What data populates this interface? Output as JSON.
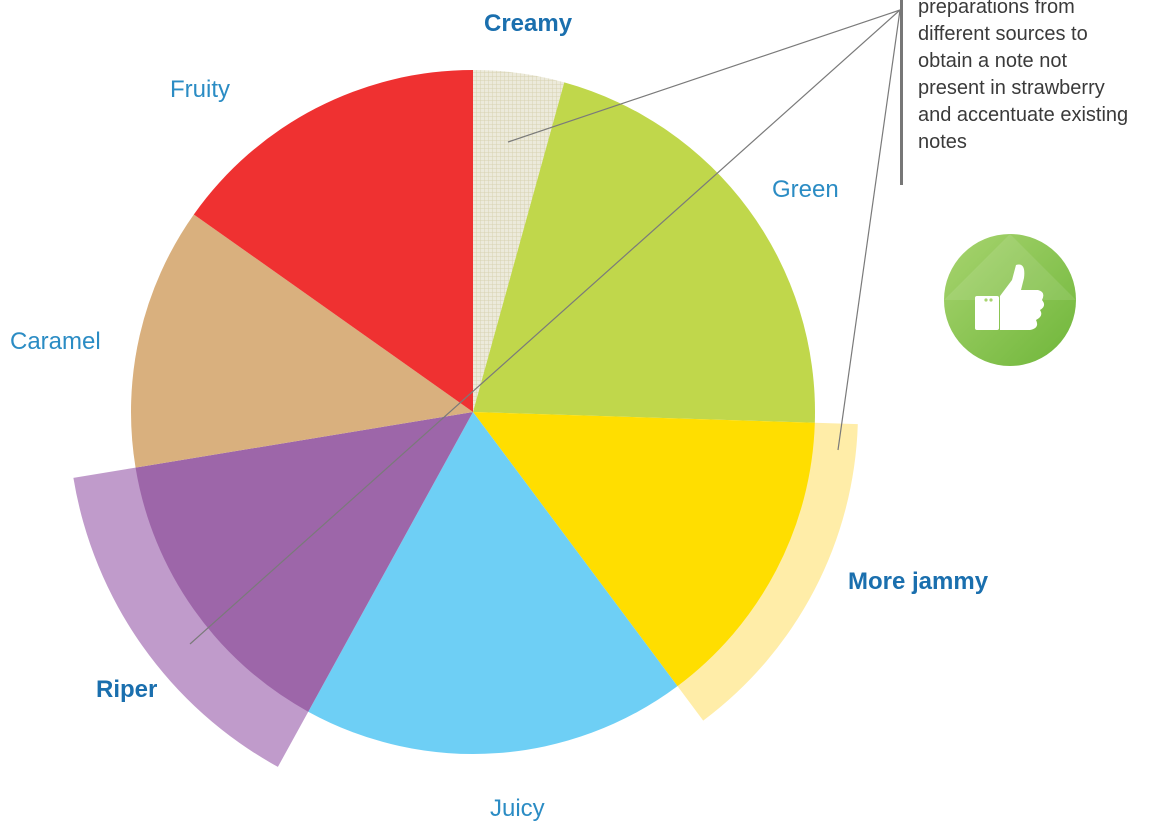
{
  "chart_data": {
    "type": "pie",
    "title": "",
    "slices": [
      {
        "label": "Creamy",
        "value": 4.3,
        "color": "#e6e2ca",
        "highlight": true
      },
      {
        "label": "Green",
        "value": 21.2,
        "color": "#c0d74b",
        "highlight": false
      },
      {
        "label": "More jammy",
        "value": 14.3,
        "color": "#ffde00",
        "highlight": true
      },
      {
        "label": "Juicy",
        "value": 18.2,
        "color": "#6ecff5",
        "highlight": false
      },
      {
        "label": "Riper",
        "value": 14.4,
        "color": "#9d66a9",
        "highlight": true
      },
      {
        "label": "Caramel",
        "value": 12.4,
        "color": "#d9b07e",
        "highlight": false
      },
      {
        "label": "Fruity",
        "value": 15.2,
        "color": "#ef3131",
        "highlight": false
      }
    ],
    "annotation": "preparations from\ndifferent sources to\nobtain a note not\npresent in strawberry\nand accentuate existing\nnotes"
  },
  "colors": {
    "label_plain": "#2b8cc4",
    "label_bold": "#1a6fae",
    "riper_ext": "#c09bcb",
    "jammy_ext": "#ffeda8",
    "thumb_circle": "#8cc63f"
  },
  "icons": {
    "badge": "thumbs-up-icon"
  }
}
